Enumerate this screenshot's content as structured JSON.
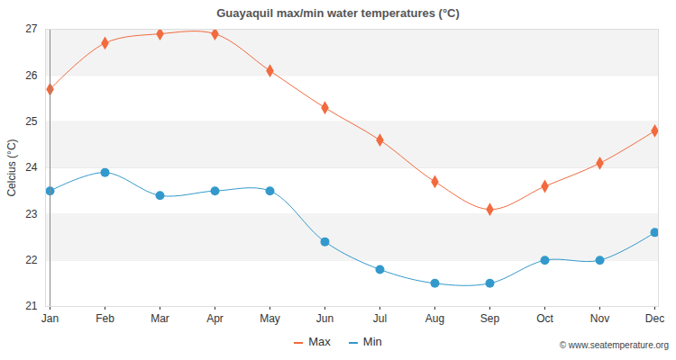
{
  "chart_data": {
    "type": "line",
    "title": "Guayaquil max/min water temperatures (°C)",
    "y_label": "Celcius (°C)",
    "caption": "© www.seatemperature.org",
    "categories": [
      "Jan",
      "Feb",
      "Mar",
      "Apr",
      "May",
      "Jun",
      "Jul",
      "Aug",
      "Sep",
      "Oct",
      "Nov",
      "Dec"
    ],
    "series": [
      {
        "name": "Max",
        "color": "#f26a3d",
        "marker": "diamond",
        "values": [
          25.7,
          26.7,
          26.9,
          26.9,
          26.1,
          25.3,
          24.6,
          23.7,
          23.1,
          23.6,
          24.1,
          24.8
        ]
      },
      {
        "name": "Min",
        "color": "#3399cc",
        "marker": "circle",
        "values": [
          23.5,
          23.9,
          23.4,
          23.5,
          23.5,
          22.4,
          21.8,
          21.5,
          21.5,
          22.0,
          22.0,
          22.6
        ]
      }
    ],
    "ylim": [
      21,
      27
    ],
    "yticks": [
      21,
      22,
      23,
      24,
      25,
      26,
      27
    ],
    "grid": true,
    "legend": "bottom"
  }
}
